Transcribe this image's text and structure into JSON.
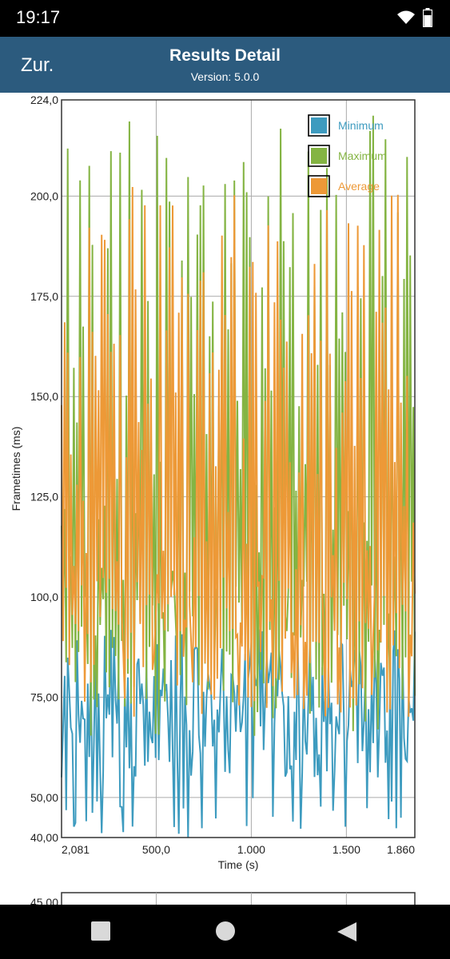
{
  "status": {
    "time": "19:17",
    "wifi_icon": "wifi-icon",
    "battery_icon": "battery-icon"
  },
  "header": {
    "back_label": "Zur.",
    "title": "Results Detail",
    "version": "Version: 5.0.0",
    "background": "#2c5b7e"
  },
  "colors": {
    "minimum": "#3d9bbf",
    "maximum": "#84b443",
    "average": "#ed9937",
    "grid": "#aaaaaa"
  },
  "chart_data": {
    "type": "line",
    "xlabel": "Time (s)",
    "ylabel": "Frametimes (ms)",
    "xlim": [
      2.081,
      1860
    ],
    "ylim": [
      40,
      224
    ],
    "y_ticks": [
      "224,0",
      "200,0",
      "175,0",
      "150,0",
      "125,0",
      "100,0",
      "75,00",
      "50,00",
      "40,00"
    ],
    "y_tick_values": [
      224,
      200,
      175,
      150,
      125,
      100,
      75,
      50,
      40
    ],
    "x_ticks": [
      "2,081",
      "500,0",
      "1.000",
      "1.500",
      "1.860"
    ],
    "x_tick_values": [
      2.081,
      500,
      1000,
      1500,
      1860
    ],
    "legend_position": "top-right",
    "series": [
      {
        "name": "Minimum",
        "min": 40,
        "max": 92,
        "typical": 72
      },
      {
        "name": "Maximum",
        "min": 65,
        "max": 222,
        "typical": 100
      },
      {
        "name": "Average",
        "min": 55,
        "max": 203,
        "typical": 90
      }
    ]
  },
  "second_chart": {
    "y_top_label": "45,00"
  },
  "nav": {
    "recents_icon": "square-recents-icon",
    "home_icon": "circle-home-icon",
    "back_icon": "triangle-back-icon"
  }
}
